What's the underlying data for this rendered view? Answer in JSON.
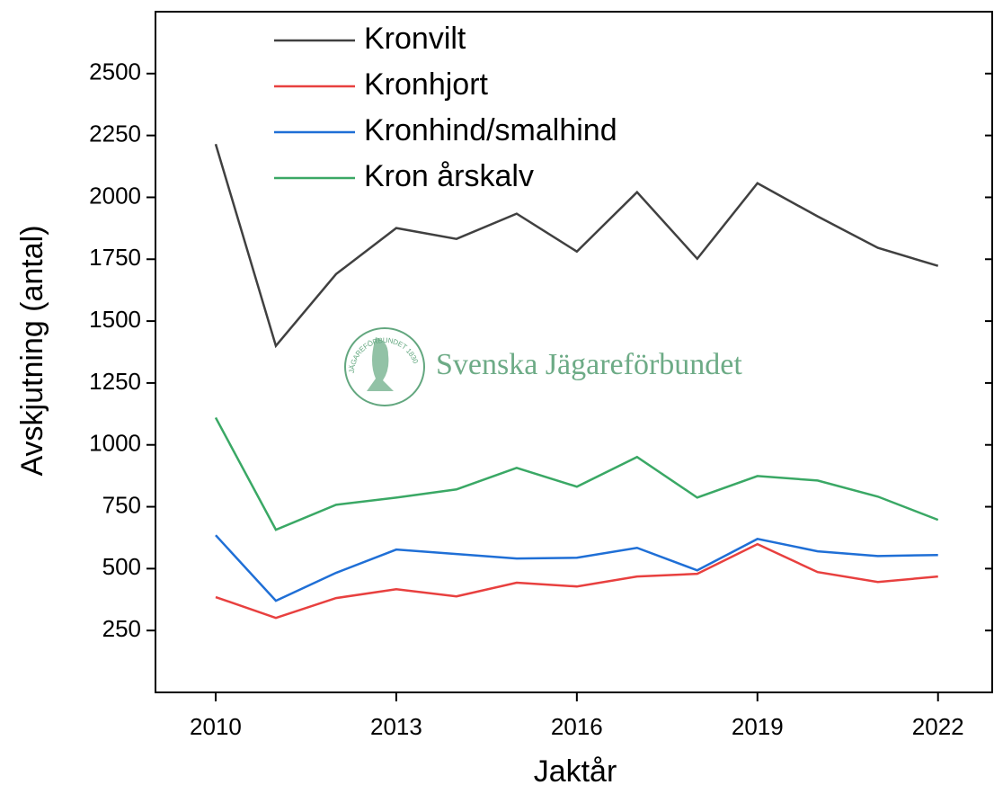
{
  "chart_data": {
    "type": "line",
    "x_label": "Jaktår",
    "y_label": "Avskjutning (antal)",
    "watermark": "Svenska Jägareförbundet",
    "logo_text": "JÄGAREFÖRBUNDET 1830",
    "x": [
      2010,
      2011,
      2012,
      2013,
      2014,
      2015,
      2016,
      2017,
      2018,
      2019,
      2020,
      2021,
      2022
    ],
    "series": [
      {
        "name": "Kronvilt",
        "color": "#404040",
        "values": [
          2215,
          1400,
          1690,
          1876,
          1832,
          1934,
          1781,
          2021,
          1752,
          2057,
          1923,
          1796,
          1723
        ]
      },
      {
        "name": "Kronhjort",
        "color": "#e8403f",
        "values": [
          385,
          301,
          381,
          417,
          388,
          443,
          428,
          468,
          479,
          599,
          486,
          446,
          468
        ]
      },
      {
        "name": "Kronhind/smalhind",
        "color": "#1f6fd6",
        "values": [
          635,
          370,
          483,
          577,
          559,
          541,
          544,
          584,
          493,
          620,
          570,
          551,
          555
        ]
      },
      {
        "name": "Kron årskalv",
        "color": "#3aa865",
        "values": [
          1110,
          657,
          758,
          787,
          820,
          907,
          831,
          951,
          787,
          874,
          856,
          791,
          697
        ]
      }
    ],
    "xlim": [
      2009,
      2022.9
    ],
    "ylim": [
      0,
      2750
    ],
    "xticks": [
      2010,
      2013,
      2016,
      2019,
      2022
    ],
    "yticks": [
      250,
      500,
      750,
      1000,
      1250,
      1500,
      1750,
      2000,
      2250,
      2500
    ],
    "legend": "upper left",
    "grid": false
  }
}
